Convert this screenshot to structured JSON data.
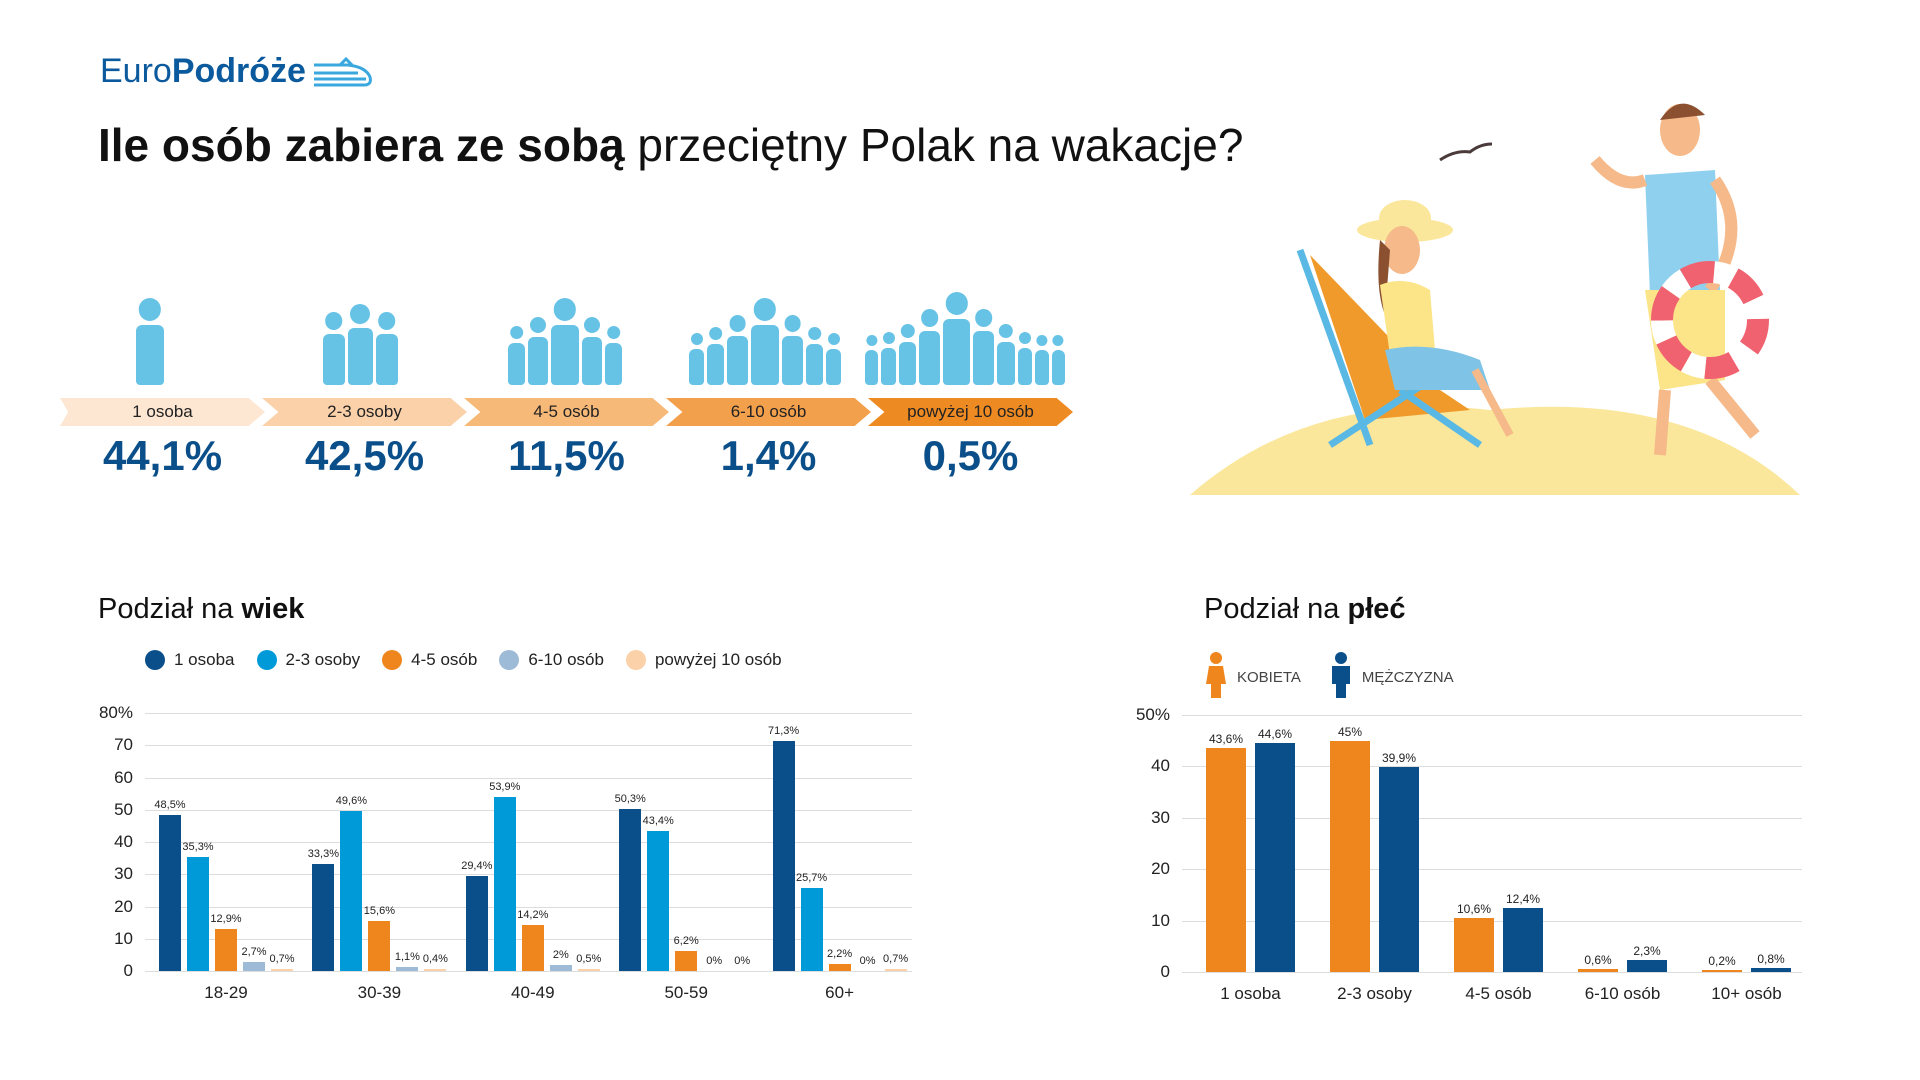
{
  "logo": {
    "part1": "Euro",
    "part2": "Podróże"
  },
  "title": {
    "bold": "Ile osób zabiera ze sobą",
    "regular": " przeciętny Polak na wakacje?"
  },
  "summary": [
    {
      "label": "1 osoba",
      "value": "44,1%",
      "color": "#fde6d2",
      "people": 1
    },
    {
      "label": "2-3 osoby",
      "value": "42,5%",
      "color": "#fbd1a9",
      "people": 3
    },
    {
      "label": "4-5 osób",
      "value": "11,5%",
      "color": "#f7b978",
      "people": 5
    },
    {
      "label": "6-10 osób",
      "value": "1,4%",
      "color": "#f3a04d",
      "people": 7
    },
    {
      "label": "powyżej 10 osób",
      "value": "0,5%",
      "color": "#ee8a22",
      "people": 10
    }
  ],
  "age_section": {
    "title_regular": "Podział na ",
    "title_bold": "wiek",
    "legend": [
      {
        "label": "1 osoba",
        "color": "#0b4f8a"
      },
      {
        "label": "2-3 osoby",
        "color": "#009ad8"
      },
      {
        "label": "4-5 osób",
        "color": "#ef861d"
      },
      {
        "label": "6-10 osób",
        "color": "#9dbbd7"
      },
      {
        "label": "powyżej 10 osób",
        "color": "#fbd1a9"
      }
    ]
  },
  "gender_section": {
    "title_regular": "Podział na ",
    "title_bold": "płeć",
    "legend": [
      {
        "label": "KOBIETA",
        "color": "#ef861d"
      },
      {
        "label": "MĘŻCZYZNA",
        "color": "#0b4f8a"
      }
    ]
  },
  "chart_data": [
    {
      "type": "bar",
      "title": "Podział na wiek",
      "categories": [
        "18-29",
        "30-39",
        "40-49",
        "50-59",
        "60+"
      ],
      "series": [
        {
          "name": "1 osoba",
          "values": [
            48.5,
            33.3,
            29.4,
            50.3,
            71.3
          ],
          "labels": [
            "48,5%",
            "33,3%",
            "29,4%",
            "50,3%",
            "71,3%"
          ]
        },
        {
          "name": "2-3 osoby",
          "values": [
            35.3,
            49.6,
            53.9,
            43.4,
            25.7
          ],
          "labels": [
            "35,3%",
            "49,6%",
            "53,9%",
            "43,4%",
            "25,7%"
          ]
        },
        {
          "name": "4-5 osób",
          "values": [
            12.9,
            15.6,
            14.2,
            6.2,
            2.2
          ],
          "labels": [
            "12,9%",
            "15,6%",
            "14,2%",
            "6,2%",
            "2,2%"
          ]
        },
        {
          "name": "6-10 osób",
          "values": [
            2.7,
            1.1,
            2,
            0,
            0
          ],
          "labels": [
            "2,7%",
            "1,1%",
            "2%",
            "0%",
            "0%"
          ]
        },
        {
          "name": "powyżej 10 osób",
          "values": [
            0.7,
            0.4,
            0.5,
            0,
            0.7
          ],
          "labels": [
            "0,7%",
            "0,4%",
            "0,5%",
            "0%",
            "0,7%"
          ]
        }
      ],
      "yticks": [
        "0",
        "10",
        "20",
        "30",
        "40",
        "50",
        "60",
        "70",
        "80%"
      ],
      "ylim": [
        0,
        80
      ],
      "grid": true,
      "legend_position": "top"
    },
    {
      "type": "bar",
      "title": "Podział na płeć",
      "categories": [
        "1 osoba",
        "2-3 osoby",
        "4-5 osób",
        "6-10 osób",
        "10+ osób"
      ],
      "series": [
        {
          "name": "KOBIETA",
          "values": [
            43.6,
            45,
            10.6,
            0.6,
            0.2
          ],
          "labels": [
            "43,6%",
            "45%",
            "10,6%",
            "0,6%",
            "0,2%"
          ]
        },
        {
          "name": "MĘŻCZYZNA",
          "values": [
            44.6,
            39.9,
            12.4,
            2.3,
            0.8
          ],
          "labels": [
            "44,6%",
            "39,9%",
            "12,4%",
            "2,3%",
            "0,8%"
          ]
        }
      ],
      "yticks": [
        "0",
        "10",
        "20",
        "30",
        "40",
        "50%"
      ],
      "ylim": [
        0,
        50
      ],
      "grid": true,
      "legend_position": "top"
    }
  ]
}
